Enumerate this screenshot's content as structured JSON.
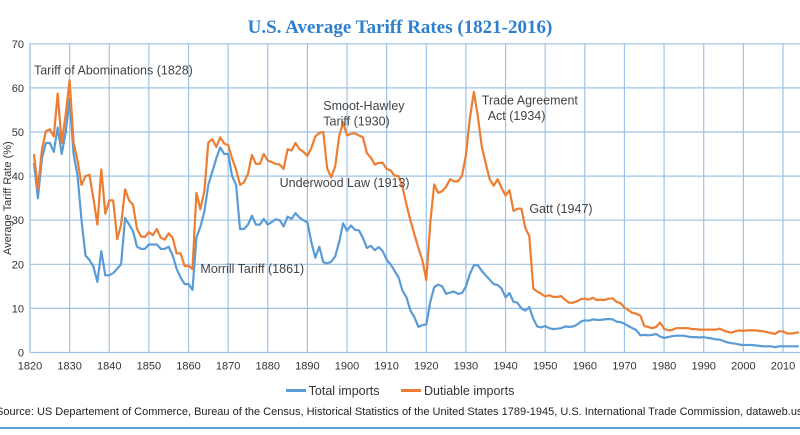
{
  "chart_data": {
    "type": "line",
    "title": "U.S. Average Tariff Rates (1821-2016)",
    "ylabel": "Average Tariff Rate (%)",
    "xlabel": "",
    "xlim": [
      1820,
      2014
    ],
    "ylim": [
      0,
      70
    ],
    "xticks": [
      1820,
      1830,
      1840,
      1850,
      1860,
      1870,
      1880,
      1890,
      1900,
      1910,
      1920,
      1930,
      1940,
      1950,
      1960,
      1970,
      1980,
      1990,
      2000,
      2010
    ],
    "yticks": [
      0,
      10,
      20,
      30,
      40,
      50,
      60,
      70
    ],
    "grid": true,
    "legend_position": "bottom",
    "x_start": 1821,
    "series": [
      {
        "name": "Total imports",
        "color": "#5b9bd5",
        "values": [
          43,
          35,
          44,
          47.5,
          47.5,
          45.5,
          51,
          45,
          50,
          57.5,
          45,
          40,
          30,
          22,
          21,
          19.5,
          16,
          23,
          17.5,
          17.5,
          18,
          19,
          20,
          30.5,
          29,
          27.5,
          24,
          23.5,
          23.5,
          24.5,
          24.5,
          24.5,
          23.5,
          23.5,
          24,
          22,
          19,
          17,
          15.5,
          15.5,
          14.2,
          26,
          28.5,
          32,
          38,
          41,
          44,
          46.5,
          45,
          45,
          40,
          38,
          28,
          28,
          29,
          31,
          29,
          29,
          30.3,
          29,
          29.6,
          30.2,
          30,
          28.6,
          30.8,
          30.3,
          31.6,
          30.6,
          30,
          29.5,
          25,
          21.5,
          24,
          20.5,
          20.2,
          20.6,
          21.8,
          25,
          29.3,
          27.6,
          28.8,
          27.8,
          27.7,
          26,
          23.7,
          24.2,
          23.2,
          23.9,
          23,
          21,
          20,
          18.5,
          17,
          14,
          12.5,
          9.5,
          8,
          5.8,
          6.2,
          6.4,
          11.5,
          14.8,
          15.4,
          15,
          13.3,
          13.6,
          13.8,
          13.3,
          13.5,
          15,
          17.8,
          19.8,
          19.8,
          18.5,
          17.5,
          16.5,
          15.5,
          15.3,
          14.5,
          12.5,
          13.5,
          11.5,
          11.3,
          10,
          9.5,
          10.3,
          7.6,
          5.9,
          5.7,
          6,
          5.5,
          5.3,
          5.4,
          5.5,
          5.9,
          5.8,
          5.9,
          6.3,
          7,
          7.3,
          7.2,
          7.5,
          7.4,
          7.4,
          7.5,
          7.6,
          7.5,
          7,
          6.9,
          6.5,
          6,
          5.5,
          5.1,
          3.9,
          4,
          3.9,
          4,
          4.2,
          3.6,
          3.3,
          3.5,
          3.7,
          3.8,
          3.8,
          3.8,
          3.6,
          3.5,
          3.5,
          3.4,
          3.5,
          3.3,
          3.2,
          3,
          2.9,
          2.6,
          2.3,
          2.1,
          2,
          1.8,
          1.7,
          1.7,
          1.7,
          1.6,
          1.5,
          1.4,
          1.4,
          1.4,
          1.2,
          1.4,
          1.4,
          1.4,
          1.4,
          1.4,
          1.4
        ]
      },
      {
        "name": "Dutiable imports",
        "color": "#ed7d31",
        "values": [
          45,
          37,
          46,
          50.2,
          50.6,
          49,
          58.7,
          47.5,
          54,
          61.7,
          47.5,
          43.5,
          38,
          40,
          40.3,
          35,
          29,
          41.5,
          31.5,
          34.5,
          34.5,
          25.7,
          29,
          37,
          34.5,
          33.5,
          28,
          26.3,
          26.2,
          27.3,
          26.6,
          28,
          26,
          25.6,
          27,
          26,
          22.5,
          22.5,
          19.6,
          19.7,
          18.9,
          36.2,
          32.5,
          36.7,
          47.6,
          48.4,
          46.6,
          48.8,
          47.4,
          47,
          44,
          41.5,
          38,
          38.6,
          40.5,
          44.8,
          42.8,
          42.8,
          45,
          43.5,
          43.2,
          42.8,
          42.6,
          41.6,
          46.1,
          45.8,
          47.5,
          46.1,
          45.5,
          44.6,
          46.4,
          49,
          49.8,
          50,
          41.7,
          39.7,
          42.2,
          49,
          52.2,
          49.2,
          49.6,
          49.7,
          49.2,
          48.8,
          45.2,
          44.2,
          42.6,
          43,
          43,
          41.6,
          41.3,
          40.1,
          40,
          37.6,
          33.5,
          30,
          26.8,
          23.7,
          21,
          16.4,
          29.5,
          38.1,
          36.2,
          36.6,
          37.6,
          39.3,
          38.8,
          38.8,
          40.1,
          44.7,
          53.2,
          59.1,
          53.6,
          46.7,
          42.9,
          39.3,
          37.8,
          39.3,
          37.3,
          35.6,
          36.8,
          32.1,
          32.6,
          32.6,
          28.2,
          26.4,
          14.5,
          13.8,
          13.3,
          12.7,
          13,
          12.6,
          12.6,
          12.8,
          12,
          11.3,
          11.3,
          11.6,
          12.1,
          12.2,
          12,
          12.4,
          11.9,
          12,
          11.9,
          12.2,
          12.3,
          11.5,
          11.2,
          10.2,
          9.6,
          9,
          8.8,
          8.4,
          6,
          5.8,
          5.5,
          5.8,
          6.8,
          5.4,
          5,
          5.1,
          5.5,
          5.5,
          5.5,
          5.5,
          5.3,
          5.3,
          5.2,
          5.2,
          5.2,
          5.2,
          5.2,
          5.4,
          5,
          4.7,
          4.5,
          4.8,
          5,
          4.9,
          5,
          5,
          5,
          4.9,
          4.8,
          4.6,
          4.4,
          4.2,
          4.8,
          4.8,
          4.3,
          4.3,
          4.4,
          4.6
        ]
      }
    ],
    "annotations": [
      {
        "text": "Tariff of Abominations (1828)",
        "x": 1821,
        "y": 63
      },
      {
        "text": "Morrill Tariff  (1861)",
        "x": 1863,
        "y": 18
      },
      {
        "text": "Underwood  Law (1913)",
        "x": 1883,
        "y": 37.5
      },
      {
        "text": "Smoot-Hawley",
        "x": 1894,
        "y": 55
      },
      {
        "text": "Tariff (1930)",
        "x": 1894,
        "y": 51.5
      },
      {
        "text": "Trade Agreement",
        "x": 1934,
        "y": 56.2
      },
      {
        "text": "Act (1934)",
        "x": 1935.5,
        "y": 52.7
      },
      {
        "text": "Gatt (1947)",
        "x": 1946,
        "y": 31.6
      }
    ],
    "source": "Source: US Departement of Commerce, Bureau of the Census, Historical Statistics of the United States 1789-1945, U.S. International Trade Commission, dataweb.usitc.gov"
  }
}
